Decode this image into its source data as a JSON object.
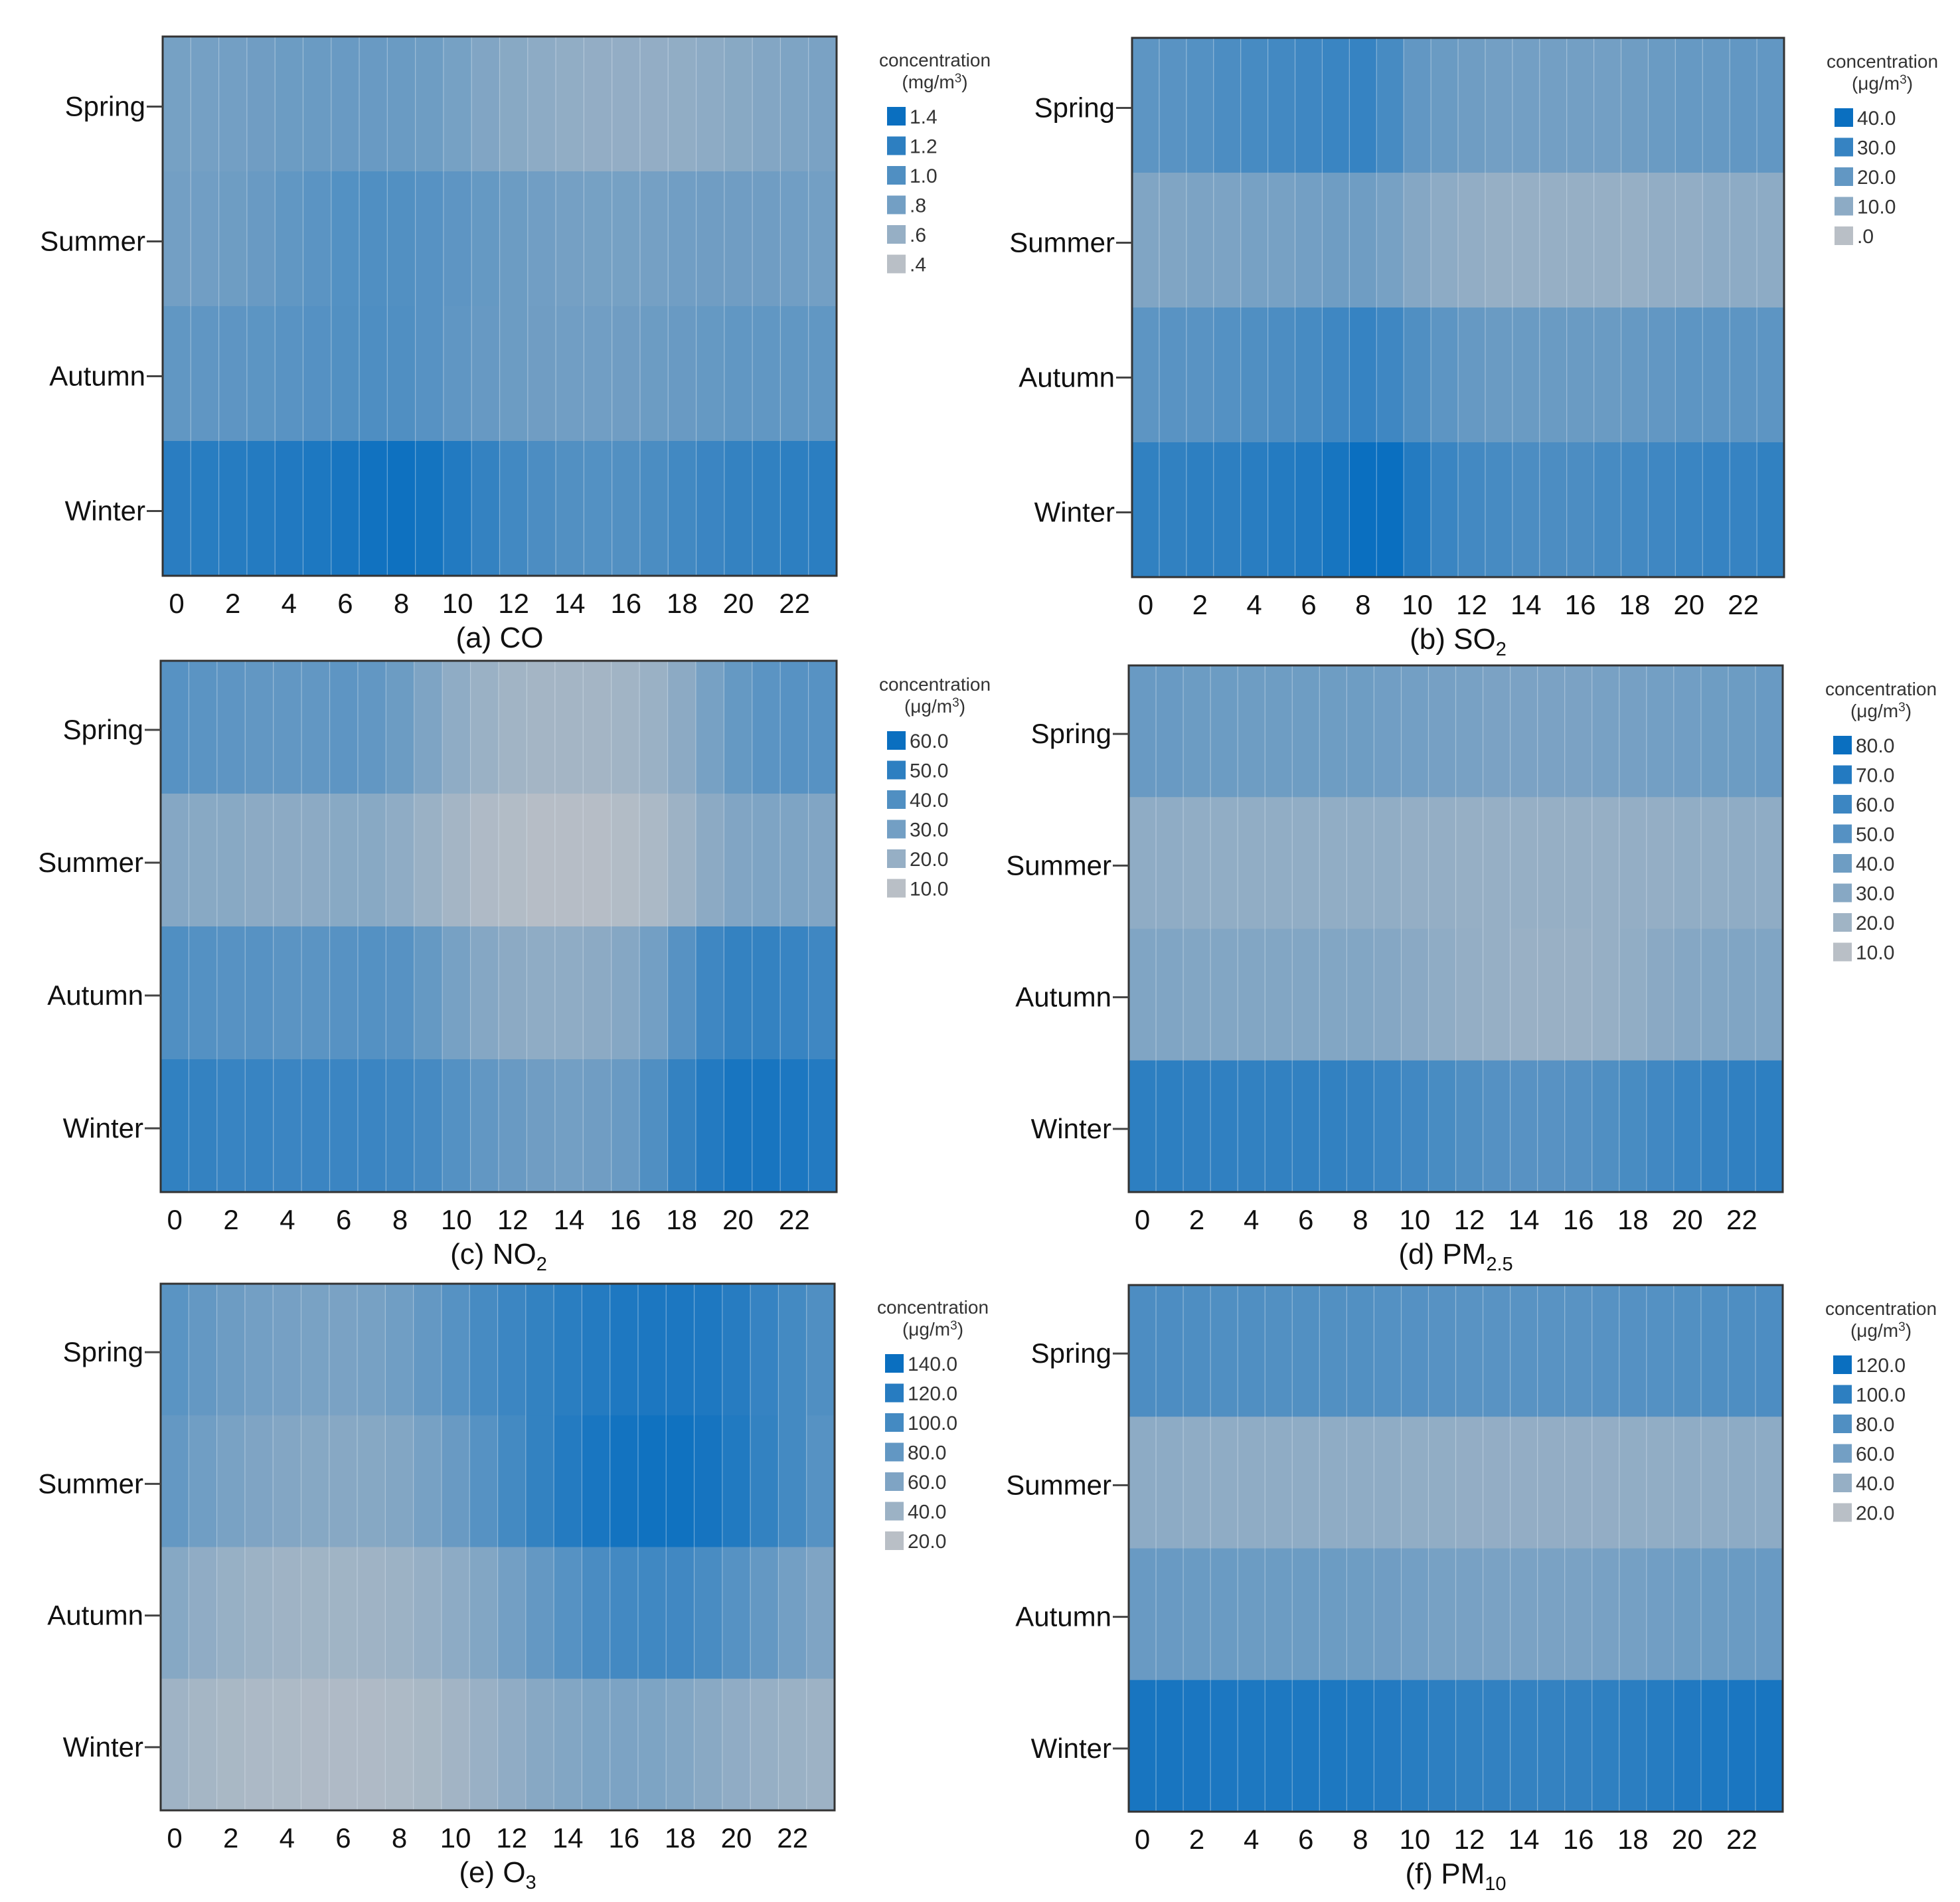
{
  "figure": {
    "season_labels": [
      "Spring",
      "Summer",
      "Autumn",
      "Winter"
    ],
    "hour_tick_labels": [
      "0",
      "2",
      "4",
      "6",
      "8",
      "10",
      "12",
      "14",
      "16",
      "18",
      "20",
      "22"
    ],
    "color_low": "#b9bfc6",
    "color_high": "#0a6fc0",
    "grid_line_color": "#dbe6ef"
  },
  "chart_data": [
    {
      "type": "heatmap",
      "panel_label": "(a) CO",
      "title": "(a) CO",
      "title_parts": {
        "prefix": "(a) ",
        "base": "CO",
        "sub": ""
      },
      "legend_title": "concentration",
      "legend_unit": "(mg/m3)",
      "legend_unit_parts": {
        "pre": "(mg/m",
        "sup": "3",
        "post": ")"
      },
      "legend_entries": [
        "1.4",
        "1.2",
        "1.0",
        ".8",
        ".6",
        ".4"
      ],
      "legend_values": [
        1.4,
        1.2,
        1.0,
        0.8,
        0.6,
        0.4
      ],
      "vmin": 0.4,
      "vmax": 1.4,
      "x": [
        0,
        1,
        2,
        3,
        4,
        5,
        6,
        7,
        8,
        9,
        10,
        11,
        12,
        13,
        14,
        15,
        16,
        17,
        18,
        19,
        20,
        21,
        22,
        23
      ],
      "xlabel": "",
      "ylabel": "",
      "y_categories": [
        "Spring",
        "Summer",
        "Autumn",
        "Winter"
      ],
      "series": [
        {
          "name": "Spring",
          "values": [
            0.78,
            0.79,
            0.8,
            0.82,
            0.84,
            0.85,
            0.86,
            0.86,
            0.85,
            0.83,
            0.78,
            0.72,
            0.68,
            0.65,
            0.63,
            0.62,
            0.62,
            0.62,
            0.63,
            0.65,
            0.68,
            0.71,
            0.74,
            0.76
          ]
        },
        {
          "name": "Summer",
          "values": [
            0.8,
            0.81,
            0.83,
            0.86,
            0.9,
            0.94,
            0.98,
            1.0,
            0.99,
            0.96,
            0.92,
            0.88,
            0.84,
            0.81,
            0.79,
            0.78,
            0.78,
            0.79,
            0.81,
            0.82,
            0.82,
            0.82,
            0.81,
            0.8
          ]
        },
        {
          "name": "Autumn",
          "values": [
            0.9,
            0.91,
            0.92,
            0.93,
            0.95,
            0.97,
            0.99,
            1.01,
            1.0,
            0.96,
            0.91,
            0.87,
            0.84,
            0.82,
            0.81,
            0.81,
            0.82,
            0.84,
            0.86,
            0.88,
            0.9,
            0.9,
            0.9,
            0.9
          ]
        },
        {
          "name": "Winter",
          "values": [
            1.22,
            1.23,
            1.24,
            1.25,
            1.27,
            1.29,
            1.32,
            1.36,
            1.38,
            1.34,
            1.26,
            1.16,
            1.08,
            1.02,
            0.99,
            0.98,
            0.99,
            1.03,
            1.08,
            1.12,
            1.16,
            1.18,
            1.2,
            1.21
          ]
        }
      ]
    },
    {
      "type": "heatmap",
      "panel_label": "(b) SO2",
      "title": "(b) SO2",
      "title_parts": {
        "prefix": "(b) ",
        "base": "SO",
        "sub": "2"
      },
      "legend_title": "concentration",
      "legend_unit": "(μg/m3)",
      "legend_unit_parts": {
        "pre": "(μg/m",
        "sup": "3",
        "post": ")"
      },
      "legend_entries": [
        "40.0",
        "30.0",
        "20.0",
        "10.0",
        ".0"
      ],
      "legend_values": [
        40.0,
        30.0,
        20.0,
        10.0,
        0.0
      ],
      "vmin": 0.0,
      "vmax": 40.0,
      "x": [
        0,
        1,
        2,
        3,
        4,
        5,
        6,
        7,
        8,
        9,
        10,
        11,
        12,
        13,
        14,
        15,
        16,
        17,
        18,
        19,
        20,
        21,
        22,
        23
      ],
      "xlabel": "",
      "ylabel": "",
      "y_categories": [
        "Spring",
        "Summer",
        "Autumn",
        "Winter"
      ],
      "series": [
        {
          "name": "Spring",
          "values": [
            21,
            22,
            23,
            25,
            26,
            27,
            28,
            29,
            30,
            26,
            20,
            18,
            17,
            16,
            16,
            16,
            16,
            16,
            17,
            18,
            19,
            19,
            20,
            20
          ]
        },
        {
          "name": "Summer",
          "values": [
            13,
            13,
            14,
            14,
            15,
            15,
            16,
            17,
            17,
            15,
            12,
            10,
            9,
            8,
            8,
            8,
            8,
            8,
            8,
            9,
            9,
            10,
            10,
            10
          ]
        },
        {
          "name": "Autumn",
          "values": [
            21,
            22,
            22,
            23,
            24,
            25,
            26,
            28,
            30,
            28,
            24,
            21,
            19,
            18,
            18,
            18,
            18,
            18,
            19,
            20,
            21,
            21,
            21,
            21
          ]
        },
        {
          "name": "Winter",
          "values": [
            31,
            31,
            32,
            32,
            33,
            34,
            35,
            37,
            40,
            40,
            34,
            29,
            27,
            26,
            25,
            25,
            25,
            26,
            27,
            28,
            29,
            30,
            30,
            31
          ]
        }
      ]
    },
    {
      "type": "heatmap",
      "panel_label": "(c) NO2",
      "title": "(c) NO2",
      "title_parts": {
        "prefix": "(c) ",
        "base": "NO",
        "sub": "2"
      },
      "legend_title": "concentration",
      "legend_unit": "(μg/m3)",
      "legend_unit_parts": {
        "pre": "(μg/m",
        "sup": "3",
        "post": ")"
      },
      "legend_entries": [
        "60.0",
        "50.0",
        "40.0",
        "30.0",
        "20.0",
        "10.0"
      ],
      "legend_values": [
        60.0,
        50.0,
        40.0,
        30.0,
        20.0,
        10.0
      ],
      "vmin": 10.0,
      "vmax": 60.0,
      "x": [
        0,
        1,
        2,
        3,
        4,
        5,
        6,
        7,
        8,
        9,
        10,
        11,
        12,
        13,
        14,
        15,
        16,
        17,
        18,
        19,
        20,
        21,
        22,
        23
      ],
      "xlabel": "",
      "ylabel": "",
      "y_categories": [
        "Spring",
        "Summer",
        "Autumn",
        "Winter"
      ],
      "series": [
        {
          "name": "Spring",
          "values": [
            38,
            37,
            36,
            35,
            35,
            35,
            36,
            35,
            32,
            27,
            22,
            19,
            17,
            16,
            16,
            16,
            17,
            19,
            23,
            29,
            34,
            37,
            38,
            38
          ]
        },
        {
          "name": "Summer",
          "values": [
            25,
            24,
            24,
            23,
            23,
            23,
            24,
            24,
            22,
            19,
            16,
            13,
            12,
            11,
            11,
            11,
            12,
            14,
            18,
            23,
            26,
            27,
            27,
            26
          ]
        },
        {
          "name": "Autumn",
          "values": [
            40,
            39,
            38,
            38,
            37,
            37,
            38,
            39,
            38,
            34,
            29,
            25,
            23,
            22,
            22,
            23,
            25,
            30,
            38,
            45,
            48,
            48,
            47,
            45
          ]
        },
        {
          "name": "Winter",
          "values": [
            49,
            48,
            47,
            47,
            46,
            46,
            46,
            46,
            45,
            43,
            39,
            35,
            33,
            31,
            30,
            31,
            33,
            40,
            48,
            53,
            56,
            56,
            55,
            53
          ]
        }
      ]
    },
    {
      "type": "heatmap",
      "panel_label": "(d) PM2.5",
      "title": "(d) PM2.5",
      "title_parts": {
        "prefix": "(d) ",
        "base": "PM",
        "sub": "2.5"
      },
      "legend_title": "concentration",
      "legend_unit": "(μg/m3)",
      "legend_unit_parts": {
        "pre": "(μg/m",
        "sup": "3",
        "post": ")"
      },
      "legend_entries": [
        "80.0",
        "70.0",
        "60.0",
        "50.0",
        "40.0",
        "30.0",
        "20.0",
        "10.0"
      ],
      "legend_values": [
        80.0,
        70.0,
        60.0,
        50.0,
        40.0,
        30.0,
        20.0,
        10.0
      ],
      "vmin": 10.0,
      "vmax": 80.0,
      "x": [
        0,
        1,
        2,
        3,
        4,
        5,
        6,
        7,
        8,
        9,
        10,
        11,
        12,
        13,
        14,
        15,
        16,
        17,
        18,
        19,
        20,
        21,
        22,
        23
      ],
      "xlabel": "",
      "ylabel": "",
      "y_categories": [
        "Spring",
        "Summer",
        "Autumn",
        "Winter"
      ],
      "series": [
        {
          "name": "Spring",
          "values": [
            42,
            42,
            41,
            41,
            40,
            40,
            40,
            40,
            40,
            39,
            38,
            37,
            36,
            35,
            35,
            35,
            35,
            36,
            37,
            38,
            39,
            40,
            41,
            42
          ]
        },
        {
          "name": "Summer",
          "values": [
            27,
            27,
            26,
            26,
            26,
            26,
            26,
            26,
            26,
            26,
            25,
            25,
            24,
            24,
            24,
            24,
            24,
            24,
            25,
            25,
            26,
            26,
            27,
            27
          ]
        },
        {
          "name": "Autumn",
          "values": [
            33,
            33,
            32,
            32,
            32,
            32,
            32,
            32,
            32,
            31,
            29,
            27,
            25,
            24,
            23,
            23,
            23,
            24,
            26,
            29,
            31,
            32,
            33,
            33
          ]
        },
        {
          "name": "Winter",
          "values": [
            66,
            66,
            65,
            65,
            64,
            64,
            64,
            64,
            63,
            61,
            58,
            55,
            52,
            50,
            49,
            49,
            50,
            52,
            55,
            58,
            61,
            63,
            65,
            66
          ]
        }
      ]
    },
    {
      "type": "heatmap",
      "panel_label": "(e) O3",
      "title": "(e) O3",
      "title_parts": {
        "prefix": "(e) ",
        "base": "O",
        "sub": "3"
      },
      "legend_title": "concentration",
      "legend_unit": "(μg/m3)",
      "legend_unit_parts": {
        "pre": "(μg/m",
        "sup": "3",
        "post": ")"
      },
      "legend_entries": [
        "140.0",
        "120.0",
        "100.0",
        "80.0",
        "60.0",
        "40.0",
        "20.0"
      ],
      "legend_values": [
        140.0,
        120.0,
        100.0,
        80.0,
        60.0,
        40.0,
        20.0
      ],
      "vmin": 20.0,
      "vmax": 140.0,
      "x": [
        0,
        1,
        2,
        3,
        4,
        5,
        6,
        7,
        8,
        9,
        10,
        11,
        12,
        13,
        14,
        15,
        16,
        17,
        18,
        19,
        20,
        21,
        22,
        23
      ],
      "xlabel": "",
      "ylabel": "",
      "y_categories": [
        "Spring",
        "Summer",
        "Autumn",
        "Winter"
      ],
      "series": [
        {
          "name": "Spring",
          "values": [
            85,
            78,
            72,
            68,
            66,
            64,
            63,
            65,
            70,
            78,
            88,
            98,
            106,
            112,
            118,
            122,
            126,
            128,
            128,
            126,
            120,
            110,
            100,
            92
          ]
        },
        {
          "name": "Summer",
          "values": [
            78,
            70,
            64,
            60,
            57,
            55,
            54,
            55,
            58,
            65,
            75,
            88,
            100,
            112,
            122,
            130,
            134,
            136,
            136,
            132,
            124,
            112,
            100,
            88
          ]
        },
        {
          "name": "Autumn",
          "values": [
            55,
            48,
            43,
            40,
            38,
            37,
            37,
            38,
            40,
            44,
            50,
            58,
            68,
            78,
            88,
            96,
            101,
            103,
            102,
            97,
            88,
            78,
            68,
            60
          ]
        },
        {
          "name": "Winter",
          "values": [
            38,
            34,
            31,
            29,
            28,
            27,
            27,
            27,
            28,
            31,
            36,
            42,
            48,
            54,
            58,
            61,
            62,
            61,
            58,
            53,
            48,
            44,
            41,
            39
          ]
        }
      ]
    },
    {
      "type": "heatmap",
      "panel_label": "(f) PM10",
      "title": "(f) PM10",
      "title_parts": {
        "prefix": "(f) ",
        "base": "PM",
        "sub": "10"
      },
      "legend_title": "concentration",
      "legend_unit": "(μg/m3)",
      "legend_unit_parts": {
        "pre": "(μg/m",
        "sup": "3",
        "post": ")"
      },
      "legend_entries": [
        "120.0",
        "100.0",
        "80.0",
        "60.0",
        "40.0",
        "20.0"
      ],
      "legend_values": [
        120.0,
        100.0,
        80.0,
        60.0,
        40.0,
        20.0
      ],
      "vmin": 20.0,
      "vmax": 120.0,
      "x": [
        0,
        1,
        2,
        3,
        4,
        5,
        6,
        7,
        8,
        9,
        10,
        11,
        12,
        13,
        14,
        15,
        16,
        17,
        18,
        19,
        20,
        21,
        22,
        23
      ],
      "xlabel": "",
      "ylabel": "",
      "y_categories": [
        "Spring",
        "Summer",
        "Autumn",
        "Winter"
      ],
      "series": [
        {
          "name": "Spring",
          "values": [
            82,
            82,
            81,
            80,
            80,
            79,
            79,
            79,
            79,
            78,
            77,
            76,
            75,
            75,
            75,
            75,
            75,
            76,
            77,
            78,
            79,
            80,
            81,
            82
          ]
        },
        {
          "name": "Summer",
          "values": [
            45,
            45,
            44,
            44,
            44,
            44,
            44,
            44,
            44,
            44,
            43,
            43,
            42,
            42,
            42,
            42,
            42,
            42,
            43,
            43,
            44,
            44,
            45,
            45
          ]
        },
        {
          "name": "Autumn",
          "values": [
            66,
            66,
            65,
            65,
            64,
            64,
            64,
            64,
            63,
            62,
            60,
            58,
            57,
            56,
            56,
            56,
            56,
            57,
            59,
            61,
            63,
            64,
            65,
            66
          ]
        },
        {
          "name": "Winter",
          "values": [
            112,
            112,
            111,
            110,
            109,
            109,
            109,
            109,
            108,
            106,
            103,
            100,
            98,
            97,
            96,
            96,
            97,
            99,
            101,
            104,
            107,
            109,
            111,
            112
          ]
        }
      ]
    }
  ]
}
